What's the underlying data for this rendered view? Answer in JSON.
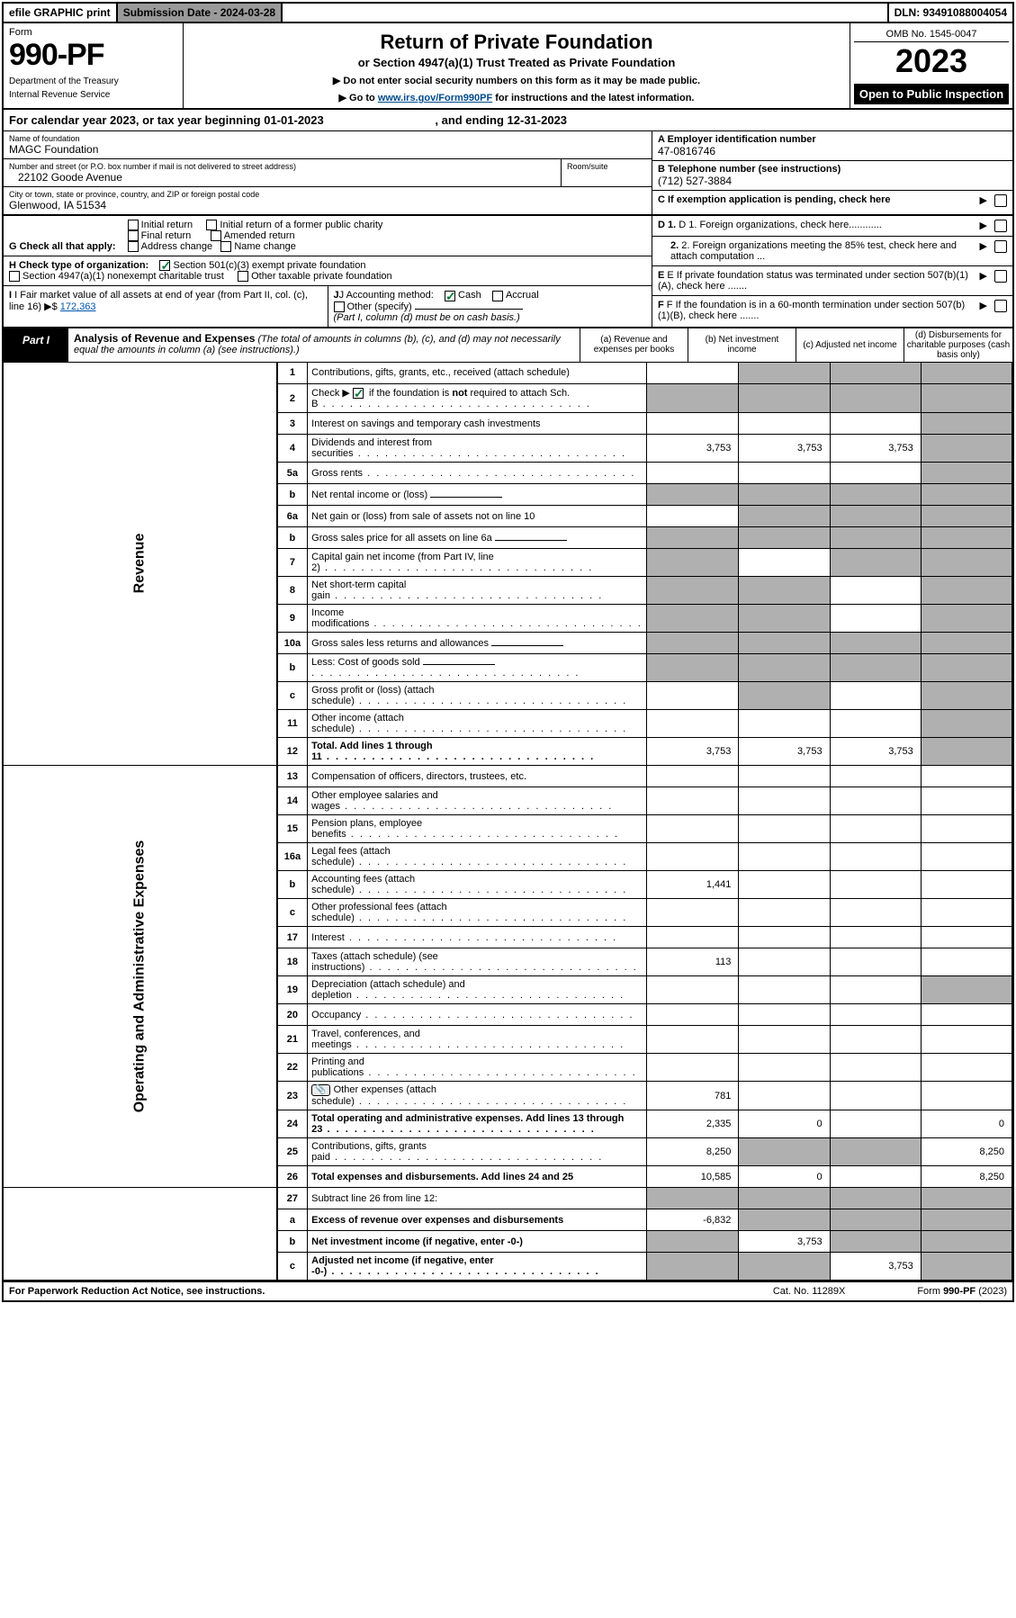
{
  "top_bar": {
    "efile": "efile GRAPHIC print",
    "submission_label": "Submission Date - 2024-03-28",
    "dln": "DLN: 93491088004054"
  },
  "header": {
    "form_label": "Form",
    "form_number": "990-PF",
    "dept": "Department of the Treasury",
    "irs": "Internal Revenue Service",
    "title": "Return of Private Foundation",
    "subtitle": "or Section 4947(a)(1) Trust Treated as Private Foundation",
    "instr1": "▶ Do not enter social security numbers on this form as it may be made public.",
    "instr2_pre": "▶ Go to ",
    "instr2_link": "www.irs.gov/Form990PF",
    "instr2_post": " for instructions and the latest information.",
    "omb": "OMB No. 1545-0047",
    "year": "2023",
    "open": "Open to Public Inspection"
  },
  "cal_year": {
    "text_pre": "For calendar year 2023, or tax year beginning ",
    "begin": "01-01-2023",
    "text_mid": " , and ending ",
    "end": "12-31-2023"
  },
  "foundation": {
    "name_label": "Name of foundation",
    "name": "MAGC Foundation",
    "addr_label": "Number and street (or P.O. box number if mail is not delivered to street address)",
    "addr": "22102 Goode Avenue",
    "room_label": "Room/suite",
    "city_label": "City or town, state or province, country, and ZIP or foreign postal code",
    "city": "Glenwood, IA  51534",
    "a_label": "A Employer identification number",
    "ein": "47-0816746",
    "b_label": "B Telephone number (see instructions)",
    "phone": "(712) 527-3884",
    "c_label": "C If exemption application is pending, check here"
  },
  "g": {
    "label": "G Check all that apply:",
    "opts": [
      "Initial return",
      "Initial return of a former public charity",
      "Final return",
      "Amended return",
      "Address change",
      "Name change"
    ]
  },
  "h": {
    "label": "H Check type of organization:",
    "opt1": "Section 501(c)(3) exempt private foundation",
    "opt2": "Section 4947(a)(1) nonexempt charitable trust",
    "opt3": "Other taxable private foundation"
  },
  "i": {
    "label": "I Fair market value of all assets at end of year (from Part II, col. (c), line 16)",
    "value": "172,363"
  },
  "j": {
    "label": "J Accounting method:",
    "cash": "Cash",
    "accrual": "Accrual",
    "other": "Other (specify)",
    "note": "(Part I, column (d) must be on cash basis.)"
  },
  "d": {
    "d1": "D 1. Foreign organizations, check here............",
    "d2": "2. Foreign organizations meeting the 85% test, check here and attach computation ...",
    "e": "E  If private foundation status was terminated under section 507(b)(1)(A), check here .......",
    "f": "F  If the foundation is in a 60-month termination under section 507(b)(1)(B), check here ......."
  },
  "part1": {
    "label": "Part I",
    "title": "Analysis of Revenue and Expenses",
    "note": " (The total of amounts in columns (b), (c), and (d) may not necessarily equal the amounts in column (a) (see instructions).)",
    "col_a": "(a)  Revenue and expenses per books",
    "col_b": "(b)  Net investment income",
    "col_c": "(c)  Adjusted net income",
    "col_d": "(d)  Disbursements for charitable purposes (cash basis only)"
  },
  "rows": [
    {
      "sec": "rev",
      "n": "1",
      "d": "Contributions, gifts, grants, etc., received (attach schedule)",
      "a": "",
      "b": "sh",
      "c": "sh",
      "dv": "sh"
    },
    {
      "sec": "rev",
      "n": "2",
      "d": "Check ▶ ☑ if the foundation is not required to attach Sch. B",
      "a": "sh",
      "b": "sh",
      "c": "sh",
      "dv": "sh",
      "check": true,
      "dots": true
    },
    {
      "sec": "rev",
      "n": "3",
      "d": "Interest on savings and temporary cash investments",
      "a": "",
      "b": "",
      "c": "",
      "dv": "sh"
    },
    {
      "sec": "rev",
      "n": "4",
      "d": "Dividends and interest from securities",
      "a": "3,753",
      "b": "3,753",
      "c": "3,753",
      "dv": "sh",
      "dots": true
    },
    {
      "sec": "rev",
      "n": "5a",
      "d": "Gross rents",
      "a": "",
      "b": "",
      "c": "",
      "dv": "sh",
      "dots": true
    },
    {
      "sec": "rev",
      "n": "b",
      "d": "Net rental income or (loss)",
      "a": "sh",
      "b": "sh",
      "c": "sh",
      "dv": "sh",
      "inline": true
    },
    {
      "sec": "rev",
      "n": "6a",
      "d": "Net gain or (loss) from sale of assets not on line 10",
      "a": "",
      "b": "sh",
      "c": "sh",
      "dv": "sh"
    },
    {
      "sec": "rev",
      "n": "b",
      "d": "Gross sales price for all assets on line 6a",
      "a": "sh",
      "b": "sh",
      "c": "sh",
      "dv": "sh",
      "inline": true
    },
    {
      "sec": "rev",
      "n": "7",
      "d": "Capital gain net income (from Part IV, line 2)",
      "a": "sh",
      "b": "",
      "c": "sh",
      "dv": "sh",
      "dots": true
    },
    {
      "sec": "rev",
      "n": "8",
      "d": "Net short-term capital gain",
      "a": "sh",
      "b": "sh",
      "c": "",
      "dv": "sh",
      "dots": true
    },
    {
      "sec": "rev",
      "n": "9",
      "d": "Income modifications",
      "a": "sh",
      "b": "sh",
      "c": "",
      "dv": "sh",
      "dots": true
    },
    {
      "sec": "rev",
      "n": "10a",
      "d": "Gross sales less returns and allowances",
      "a": "sh",
      "b": "sh",
      "c": "sh",
      "dv": "sh",
      "inline": true
    },
    {
      "sec": "rev",
      "n": "b",
      "d": "Less: Cost of goods sold",
      "a": "sh",
      "b": "sh",
      "c": "sh",
      "dv": "sh",
      "inline": true,
      "dots": true
    },
    {
      "sec": "rev",
      "n": "c",
      "d": "Gross profit or (loss) (attach schedule)",
      "a": "",
      "b": "sh",
      "c": "",
      "dv": "sh",
      "dots": true
    },
    {
      "sec": "rev",
      "n": "11",
      "d": "Other income (attach schedule)",
      "a": "",
      "b": "",
      "c": "",
      "dv": "sh",
      "dots": true
    },
    {
      "sec": "rev",
      "n": "12",
      "d": "Total. Add lines 1 through 11",
      "a": "3,753",
      "b": "3,753",
      "c": "3,753",
      "dv": "sh",
      "bold": true,
      "dots": true
    },
    {
      "sec": "exp",
      "n": "13",
      "d": "Compensation of officers, directors, trustees, etc.",
      "a": "",
      "b": "",
      "c": "",
      "dv": ""
    },
    {
      "sec": "exp",
      "n": "14",
      "d": "Other employee salaries and wages",
      "a": "",
      "b": "",
      "c": "",
      "dv": "",
      "dots": true
    },
    {
      "sec": "exp",
      "n": "15",
      "d": "Pension plans, employee benefits",
      "a": "",
      "b": "",
      "c": "",
      "dv": "",
      "dots": true
    },
    {
      "sec": "exp",
      "n": "16a",
      "d": "Legal fees (attach schedule)",
      "a": "",
      "b": "",
      "c": "",
      "dv": "",
      "dots": true
    },
    {
      "sec": "exp",
      "n": "b",
      "d": "Accounting fees (attach schedule)",
      "a": "1,441",
      "b": "",
      "c": "",
      "dv": "",
      "dots": true
    },
    {
      "sec": "exp",
      "n": "c",
      "d": "Other professional fees (attach schedule)",
      "a": "",
      "b": "",
      "c": "",
      "dv": "",
      "dots": true
    },
    {
      "sec": "exp",
      "n": "17",
      "d": "Interest",
      "a": "",
      "b": "",
      "c": "",
      "dv": "",
      "dots": true
    },
    {
      "sec": "exp",
      "n": "18",
      "d": "Taxes (attach schedule) (see instructions)",
      "a": "113",
      "b": "",
      "c": "",
      "dv": "",
      "dots": true
    },
    {
      "sec": "exp",
      "n": "19",
      "d": "Depreciation (attach schedule) and depletion",
      "a": "",
      "b": "",
      "c": "",
      "dv": "sh",
      "dots": true
    },
    {
      "sec": "exp",
      "n": "20",
      "d": "Occupancy",
      "a": "",
      "b": "",
      "c": "",
      "dv": "",
      "dots": true
    },
    {
      "sec": "exp",
      "n": "21",
      "d": "Travel, conferences, and meetings",
      "a": "",
      "b": "",
      "c": "",
      "dv": "",
      "dots": true
    },
    {
      "sec": "exp",
      "n": "22",
      "d": "Printing and publications",
      "a": "",
      "b": "",
      "c": "",
      "dv": "",
      "dots": true
    },
    {
      "sec": "exp",
      "n": "23",
      "d": "Other expenses (attach schedule)",
      "a": "781",
      "b": "",
      "c": "",
      "dv": "",
      "dots": true,
      "icon": true
    },
    {
      "sec": "exp",
      "n": "24",
      "d": "Total operating and administrative expenses. Add lines 13 through 23",
      "a": "2,335",
      "b": "0",
      "c": "",
      "dv": "0",
      "bold": true,
      "dots": true
    },
    {
      "sec": "exp",
      "n": "25",
      "d": "Contributions, gifts, grants paid",
      "a": "8,250",
      "b": "sh",
      "c": "sh",
      "dv": "8,250",
      "dots": true
    },
    {
      "sec": "exp",
      "n": "26",
      "d": "Total expenses and disbursements. Add lines 24 and 25",
      "a": "10,585",
      "b": "0",
      "c": "",
      "dv": "8,250",
      "bold": true
    },
    {
      "sec": "net",
      "n": "27",
      "d": "Subtract line 26 from line 12:",
      "a": "sh",
      "b": "sh",
      "c": "sh",
      "dv": "sh"
    },
    {
      "sec": "net",
      "n": "a",
      "d": "Excess of revenue over expenses and disbursements",
      "a": "-6,832",
      "b": "sh",
      "c": "sh",
      "dv": "sh",
      "bold": true
    },
    {
      "sec": "net",
      "n": "b",
      "d": "Net investment income (if negative, enter -0-)",
      "a": "sh",
      "b": "3,753",
      "c": "sh",
      "dv": "sh",
      "bold": true
    },
    {
      "sec": "net",
      "n": "c",
      "d": "Adjusted net income (if negative, enter -0-)",
      "a": "sh",
      "b": "sh",
      "c": "3,753",
      "dv": "sh",
      "bold": true,
      "dots": true
    }
  ],
  "vlabels": {
    "rev": "Revenue",
    "exp": "Operating and Administrative Expenses"
  },
  "footer": {
    "left": "For Paperwork Reduction Act Notice, see instructions.",
    "mid": "Cat. No. 11289X",
    "right": "Form 990-PF (2023)"
  },
  "colors": {
    "shaded": "#b0b0b0",
    "black": "#000000",
    "link": "#0055aa",
    "check": "#0b7a3c"
  }
}
